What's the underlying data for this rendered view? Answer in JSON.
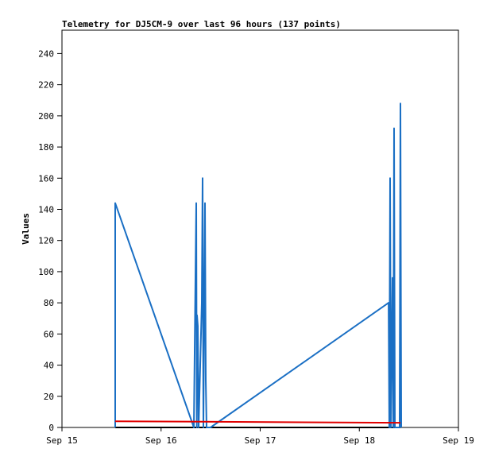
{
  "chart_data": {
    "type": "line",
    "title": "Telemetry for DJ5CM-9 over last 96 hours (137 points)",
    "y_label": "Values",
    "xlim": [
      15,
      19
    ],
    "xticks": [
      {
        "value": 15,
        "label": "Sep 15"
      },
      {
        "value": 16,
        "label": "Sep 16"
      },
      {
        "value": 17,
        "label": "Sep 17"
      },
      {
        "value": 18,
        "label": "Sep 18"
      },
      {
        "value": 19,
        "label": "Sep 19"
      }
    ],
    "ylim": [
      0,
      255
    ],
    "yticks": [
      0,
      20,
      40,
      60,
      80,
      100,
      120,
      140,
      160,
      180,
      200,
      220,
      240
    ],
    "grid": false,
    "series": [
      {
        "color": "#000000",
        "x": [
          15.537,
          18.415
        ],
        "values": [
          0,
          0
        ]
      },
      {
        "color": "#1a6fc4",
        "x": [
          15.537,
          15.537,
          16.331,
          16.355,
          16.36,
          16.363,
          16.371,
          16.379,
          16.411,
          16.419,
          16.427,
          16.435,
          16.443,
          16.451,
          16.459,
          16.499,
          18.295,
          18.303,
          18.311,
          18.319,
          18.335,
          18.343,
          18.351,
          18.359,
          18.407,
          18.415,
          18.423
        ],
        "values": [
          0,
          144,
          0,
          144,
          0,
          72,
          65,
          0,
          80,
          160,
          0,
          72,
          144,
          30,
          0,
          0,
          80,
          0,
          160,
          0,
          96,
          0,
          192,
          0,
          0,
          208,
          0
        ]
      },
      {
        "color": "#e00000",
        "x": [
          15.537,
          18.415
        ],
        "values": [
          4,
          3
        ]
      }
    ]
  }
}
